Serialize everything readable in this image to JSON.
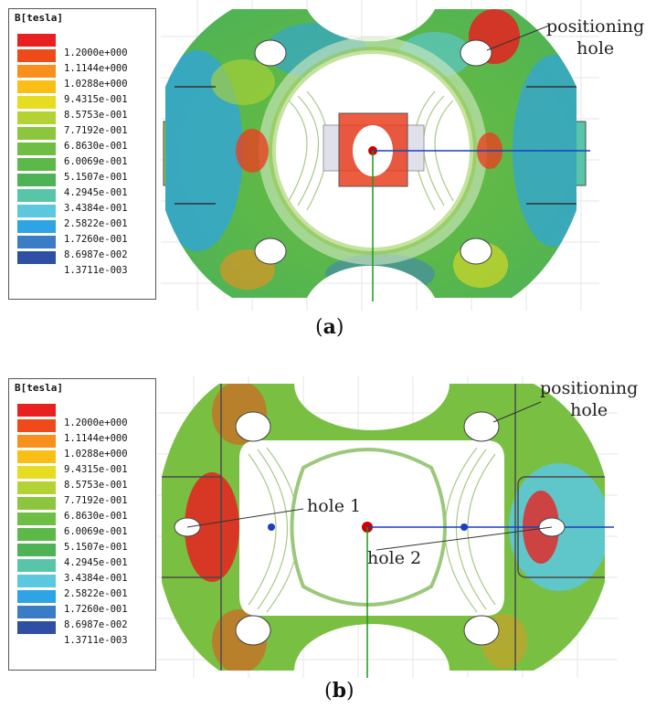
{
  "panels": [
    {
      "id": "a",
      "legend": {
        "title": "B[tesla]",
        "entries": [
          {
            "label": "1.2000e+000",
            "color": "#e82020"
          },
          {
            "label": "1.1144e+000",
            "color": "#ef4a1a"
          },
          {
            "label": "1.0288e+000",
            "color": "#f7901d"
          },
          {
            "label": "9.4315e-001",
            "color": "#f9bf16"
          },
          {
            "label": "8.5753e-001",
            "color": "#e6dc22"
          },
          {
            "label": "7.7192e-001",
            "color": "#b3d334"
          },
          {
            "label": "6.8630e-001",
            "color": "#8cc63f"
          },
          {
            "label": "6.0069e-001",
            "color": "#6fbe44"
          },
          {
            "label": "5.1507e-001",
            "color": "#5cb848"
          },
          {
            "label": "4.2945e-001",
            "color": "#4fb356"
          },
          {
            "label": "3.4384e-001",
            "color": "#58c4a8"
          },
          {
            "label": "2.5822e-001",
            "color": "#5bc8e0"
          },
          {
            "label": "1.7260e-001",
            "color": "#2fa4e4"
          },
          {
            "label": "8.6987e-002",
            "color": "#3b7cc7"
          },
          {
            "label": "1.3711e-003",
            "color": "#2e4fa3"
          }
        ]
      },
      "annotations": [
        "positioning\nhole"
      ],
      "caption_letter": "a"
    },
    {
      "id": "b",
      "legend": {
        "title": "B[tesla]",
        "entries": [
          {
            "label": "1.2000e+000",
            "color": "#e82020"
          },
          {
            "label": "1.1144e+000",
            "color": "#ef4a1a"
          },
          {
            "label": "1.0288e+000",
            "color": "#f7901d"
          },
          {
            "label": "9.4315e-001",
            "color": "#f9bf16"
          },
          {
            "label": "8.5753e-001",
            "color": "#e6dc22"
          },
          {
            "label": "7.7192e-001",
            "color": "#b3d334"
          },
          {
            "label": "6.8630e-001",
            "color": "#8cc63f"
          },
          {
            "label": "6.0069e-001",
            "color": "#6fbe44"
          },
          {
            "label": "5.1507e-001",
            "color": "#5cb848"
          },
          {
            "label": "4.2945e-001",
            "color": "#4fb356"
          },
          {
            "label": "3.4384e-001",
            "color": "#58c4a8"
          },
          {
            "label": "2.5822e-001",
            "color": "#5bc8e0"
          },
          {
            "label": "1.7260e-001",
            "color": "#2fa4e4"
          },
          {
            "label": "8.6987e-002",
            "color": "#3b7cc7"
          },
          {
            "label": "1.3711e-003",
            "color": "#2e4fa3"
          }
        ]
      },
      "annotations": [
        "positioning\nhole",
        "hole 1",
        "hole 2"
      ],
      "caption_letter": "b"
    }
  ]
}
